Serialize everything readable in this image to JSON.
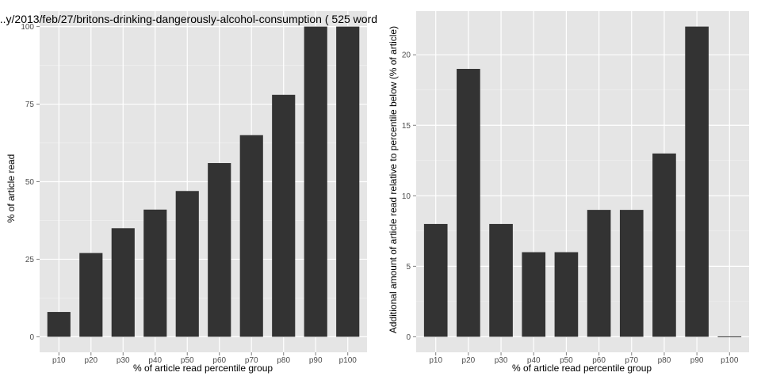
{
  "colors": {
    "panel_bg": "#e5e5e5",
    "grid_major": "#ffffff",
    "grid_minor": "#f2f2f2",
    "bar_fill": "#333333",
    "tick_color": "#7f7f7f"
  },
  "chart_data": [
    {
      "type": "bar",
      "title": "...y/2013/feb/27/britons-drinking-dangerously-alcohol-consumption ( 525 word",
      "xlabel": "% of article read percentile group",
      "ylabel": "% of article read",
      "categories": [
        "p10",
        "p20",
        "p30",
        "p40",
        "p50",
        "p60",
        "p70",
        "p80",
        "p90",
        "p100"
      ],
      "values": [
        8,
        27,
        35,
        41,
        47,
        56,
        65,
        78,
        100,
        100
      ],
      "ylim": [
        -5,
        105
      ],
      "yticks": [
        0,
        25,
        50,
        75,
        100
      ],
      "ytick_labels": [
        "0",
        "25",
        "50",
        "75",
        "100"
      ],
      "grid": true,
      "legend": "none"
    },
    {
      "type": "bar",
      "title": "",
      "xlabel": "% of article read percentile group",
      "ylabel": "Additional amount of article read relative to percentile below (% of article)",
      "categories": [
        "p10",
        "p20",
        "p30",
        "p40",
        "p50",
        "p60",
        "p70",
        "p80",
        "p90",
        "p100"
      ],
      "values": [
        8,
        19,
        8,
        6,
        6,
        9,
        9,
        13,
        22,
        0
      ],
      "ylim": [
        -1.1,
        23.1
      ],
      "yticks": [
        0,
        5,
        10,
        15,
        20
      ],
      "ytick_labels": [
        "0",
        "5",
        "10",
        "15",
        "20"
      ],
      "grid": true,
      "legend": "none"
    }
  ]
}
